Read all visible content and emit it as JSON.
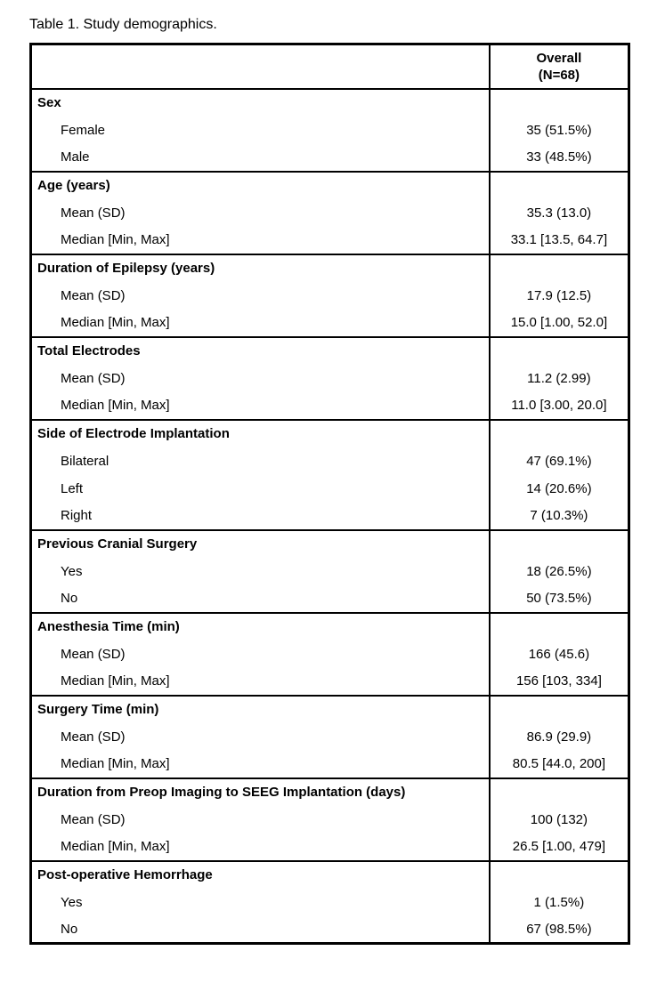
{
  "title": "Table 1. Study demographics.",
  "table": {
    "header": {
      "overall_line1": "Overall",
      "overall_line2": "(N=68)"
    },
    "sections": [
      {
        "label": "Sex",
        "rows": [
          {
            "label": "Female",
            "value": "35 (51.5%)"
          },
          {
            "label": "Male",
            "value": "33 (48.5%)"
          }
        ]
      },
      {
        "label": "Age (years)",
        "rows": [
          {
            "label": "Mean (SD)",
            "value": "35.3 (13.0)"
          },
          {
            "label": "Median [Min, Max]",
            "value": "33.1 [13.5, 64.7]"
          }
        ]
      },
      {
        "label": "Duration of Epilepsy (years)",
        "rows": [
          {
            "label": "Mean (SD)",
            "value": "17.9 (12.5)"
          },
          {
            "label": "Median [Min, Max]",
            "value": "15.0 [1.00, 52.0]"
          }
        ]
      },
      {
        "label": "Total Electrodes",
        "rows": [
          {
            "label": "Mean (SD)",
            "value": "11.2 (2.99)"
          },
          {
            "label": "Median [Min, Max]",
            "value": "11.0 [3.00, 20.0]"
          }
        ]
      },
      {
        "label": "Side of Electrode Implantation",
        "rows": [
          {
            "label": "Bilateral",
            "value": "47 (69.1%)"
          },
          {
            "label": "Left",
            "value": "14 (20.6%)"
          },
          {
            "label": "Right",
            "value": "7 (10.3%)"
          }
        ]
      },
      {
        "label": "Previous Cranial Surgery",
        "rows": [
          {
            "label": "Yes",
            "value": "18 (26.5%)"
          },
          {
            "label": "No",
            "value": "50 (73.5%)"
          }
        ]
      },
      {
        "label": "Anesthesia Time (min)",
        "rows": [
          {
            "label": "Mean (SD)",
            "value": "166 (45.6)"
          },
          {
            "label": "Median [Min, Max]",
            "value": "156 [103, 334]"
          }
        ]
      },
      {
        "label": "Surgery Time (min)",
        "rows": [
          {
            "label": "Mean (SD)",
            "value": "86.9 (29.9)"
          },
          {
            "label": "Median [Min, Max]",
            "value": "80.5 [44.0, 200]"
          }
        ]
      },
      {
        "label": "Duration from Preop Imaging to SEEG Implantation (days)",
        "rows": [
          {
            "label": "Mean (SD)",
            "value": "100 (132)"
          },
          {
            "label": "Median [Min, Max]",
            "value": "26.5 [1.00, 479]"
          }
        ]
      },
      {
        "label": "Post-operative Hemorrhage",
        "rows": [
          {
            "label": "Yes",
            "value": "1 (1.5%)"
          },
          {
            "label": "No",
            "value": "67 (98.5%)"
          }
        ]
      }
    ]
  }
}
